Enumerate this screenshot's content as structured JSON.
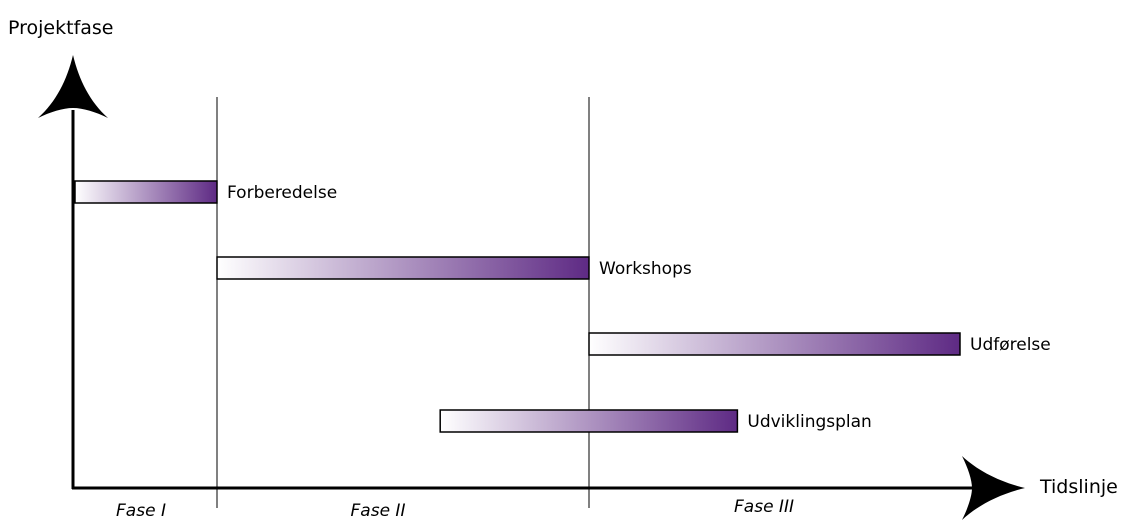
{
  "y_axis_label": "Projektfase",
  "x_axis_label": "Tidslinje",
  "phases": [
    "Fase I",
    "Fase II",
    "Fase III"
  ],
  "tasks": [
    {
      "label": "Forberedelse",
      "start": 0,
      "end": 1,
      "row": 1
    },
    {
      "label": "Workshops",
      "start": 1,
      "end": 2,
      "row": 2
    },
    {
      "label": "Udførelse",
      "start": 2,
      "end": 3,
      "row": 3
    },
    {
      "label": "Udviklingsplan",
      "start": 1.6,
      "end": 2.4,
      "row": 4
    }
  ],
  "colors": {
    "bar_start": "#ffffff",
    "bar_end": "#5e2a84",
    "stroke": "#000000"
  }
}
